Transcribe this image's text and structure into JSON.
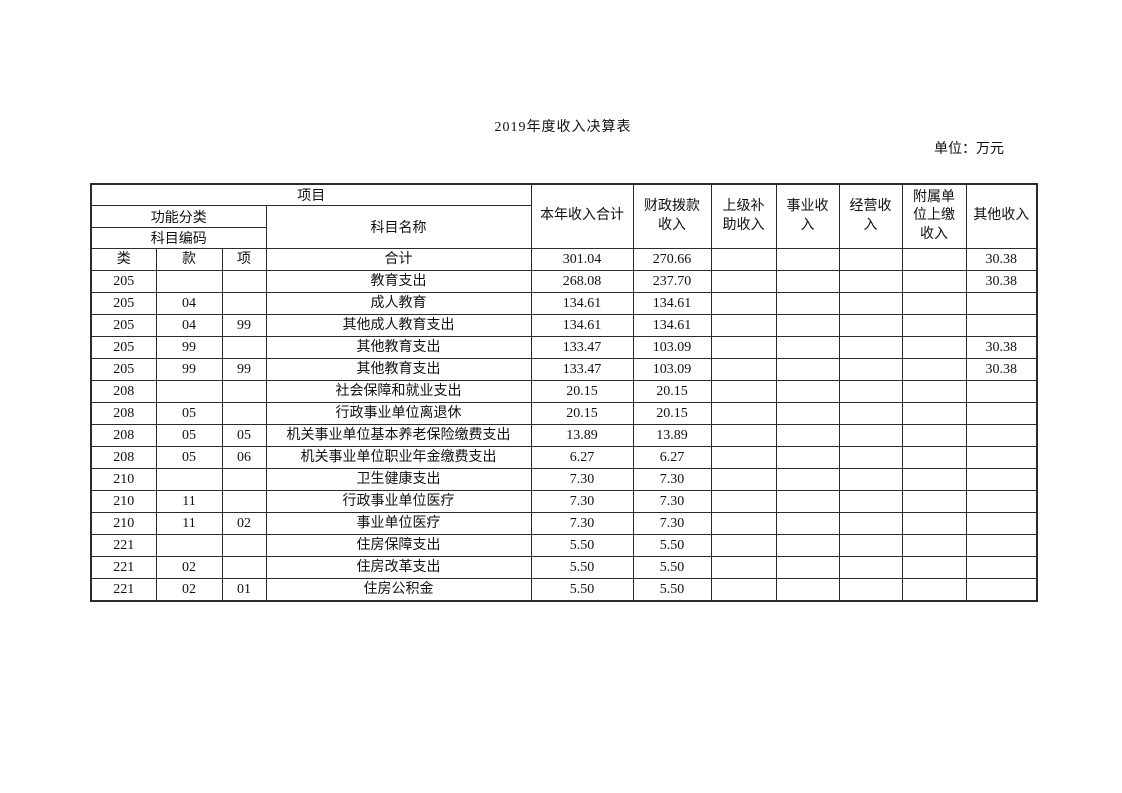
{
  "page": {
    "title": "2019年度收入决算表",
    "unit_label": "单位：万元"
  },
  "table": {
    "header": {
      "project": "项目",
      "functional_class": "功能分类",
      "subject_code": "科目编码",
      "subject_name": "科目名称",
      "revenue_columns": [
        "本年收入合计",
        "财政拨款\n收入",
        "上级补\n助收入",
        "事业收\n入",
        "经营收\n入",
        "附属单\n位上缴\n收入",
        "其他收入"
      ]
    },
    "rows": [
      {
        "code_class": "类",
        "code_section": "款",
        "code_item": "项",
        "name": "合计",
        "values": [
          "301.04",
          "270.66",
          "",
          "",
          "",
          "",
          "30.38"
        ]
      },
      {
        "code_class": "205",
        "code_section": "",
        "code_item": "",
        "name": "教育支出",
        "values": [
          "268.08",
          "237.70",
          "",
          "",
          "",
          "",
          "30.38"
        ]
      },
      {
        "code_class": "205",
        "code_section": "04",
        "code_item": "",
        "name": "成人教育",
        "values": [
          "134.61",
          "134.61",
          "",
          "",
          "",
          "",
          ""
        ]
      },
      {
        "code_class": "205",
        "code_section": "04",
        "code_item": "99",
        "name": "其他成人教育支出",
        "values": [
          "134.61",
          "134.61",
          "",
          "",
          "",
          "",
          ""
        ]
      },
      {
        "code_class": "205",
        "code_section": "99",
        "code_item": "",
        "name": "其他教育支出",
        "values": [
          "133.47",
          "103.09",
          "",
          "",
          "",
          "",
          "30.38"
        ]
      },
      {
        "code_class": "205",
        "code_section": "99",
        "code_item": "99",
        "name": "其他教育支出",
        "values": [
          "133.47",
          "103.09",
          "",
          "",
          "",
          "",
          "30.38"
        ]
      },
      {
        "code_class": "208",
        "code_section": "",
        "code_item": "",
        "name": "社会保障和就业支出",
        "values": [
          "20.15",
          "20.15",
          "",
          "",
          "",
          "",
          ""
        ]
      },
      {
        "code_class": "208",
        "code_section": "05",
        "code_item": "",
        "name": "行政事业单位离退休",
        "values": [
          "20.15",
          "20.15",
          "",
          "",
          "",
          "",
          ""
        ]
      },
      {
        "code_class": "208",
        "code_section": "05",
        "code_item": "05",
        "name": "机关事业单位基本养老保险缴费支出",
        "values": [
          "13.89",
          "13.89",
          "",
          "",
          "",
          "",
          ""
        ]
      },
      {
        "code_class": "208",
        "code_section": "05",
        "code_item": "06",
        "name": "机关事业单位职业年金缴费支出",
        "values": [
          "6.27",
          "6.27",
          "",
          "",
          "",
          "",
          ""
        ]
      },
      {
        "code_class": "210",
        "code_section": "",
        "code_item": "",
        "name": "卫生健康支出",
        "values": [
          "7.30",
          "7.30",
          "",
          "",
          "",
          "",
          ""
        ]
      },
      {
        "code_class": "210",
        "code_section": "11",
        "code_item": "",
        "name": "行政事业单位医疗",
        "values": [
          "7.30",
          "7.30",
          "",
          "",
          "",
          "",
          ""
        ]
      },
      {
        "code_class": "210",
        "code_section": "11",
        "code_item": "02",
        "name": "事业单位医疗",
        "values": [
          "7.30",
          "7.30",
          "",
          "",
          "",
          "",
          ""
        ]
      },
      {
        "code_class": "221",
        "code_section": "",
        "code_item": "",
        "name": "住房保障支出",
        "values": [
          "5.50",
          "5.50",
          "",
          "",
          "",
          "",
          ""
        ]
      },
      {
        "code_class": "221",
        "code_section": "02",
        "code_item": "",
        "name": "住房改革支出",
        "values": [
          "5.50",
          "5.50",
          "",
          "",
          "",
          "",
          ""
        ]
      },
      {
        "code_class": "221",
        "code_section": "02",
        "code_item": "01",
        "name": "住房公积金",
        "values": [
          "5.50",
          "5.50",
          "",
          "",
          "",
          "",
          ""
        ]
      }
    ]
  }
}
